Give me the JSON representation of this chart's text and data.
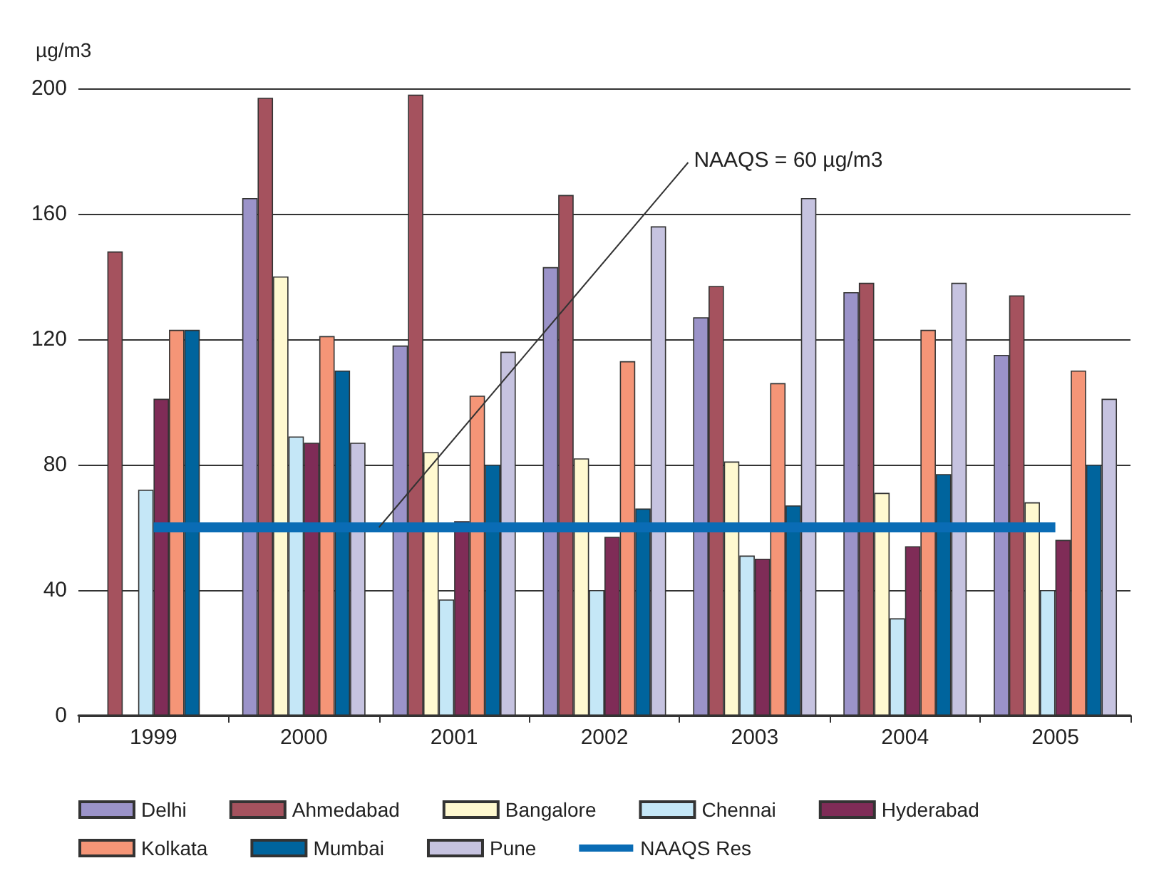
{
  "chart_data": {
    "type": "bar",
    "ylabel": "µg/m3",
    "categories": [
      "1999",
      "2000",
      "2001",
      "2002",
      "2003",
      "2004",
      "2005"
    ],
    "series": [
      {
        "name": "Delhi",
        "color": "#9b93c9",
        "values": [
          null,
          165,
          118,
          143,
          127,
          135,
          115
        ]
      },
      {
        "name": "Ahmedabad",
        "color": "#a5525e",
        "values": [
          148,
          197,
          198,
          166,
          137,
          138,
          134
        ]
      },
      {
        "name": "Bangalore",
        "color": "#fff9d0",
        "values": [
          null,
          140,
          84,
          82,
          81,
          71,
          68
        ]
      },
      {
        "name": "Chennai",
        "color": "#c5e7f7",
        "values": [
          72,
          89,
          37,
          40,
          51,
          31,
          40
        ]
      },
      {
        "name": "Hyderabad",
        "color": "#7f2c57",
        "values": [
          101,
          87,
          62,
          57,
          50,
          54,
          56
        ]
      },
      {
        "name": "Kolkata",
        "color": "#f59577",
        "values": [
          123,
          121,
          102,
          113,
          106,
          123,
          110
        ]
      },
      {
        "name": "Mumbai",
        "color": "#00649d",
        "values": [
          123,
          110,
          80,
          66,
          67,
          77,
          80
        ]
      },
      {
        "name": "Pune",
        "color": "#c6c3e0",
        "values": [
          null,
          87,
          116,
          156,
          165,
          138,
          101
        ]
      },
      {
        "name": "NAAQS Res",
        "type": "line",
        "marker": "none",
        "color": "#0a6cb5",
        "values": [
          60,
          60,
          60,
          60,
          60,
          60,
          60
        ]
      }
    ],
    "annotations": [
      "NAAQS = 60 µg/m3"
    ],
    "ylim": [
      0,
      200
    ],
    "yticks": [
      0,
      40,
      80,
      120,
      160,
      200
    ],
    "grid": "y",
    "legend": "bottom"
  }
}
